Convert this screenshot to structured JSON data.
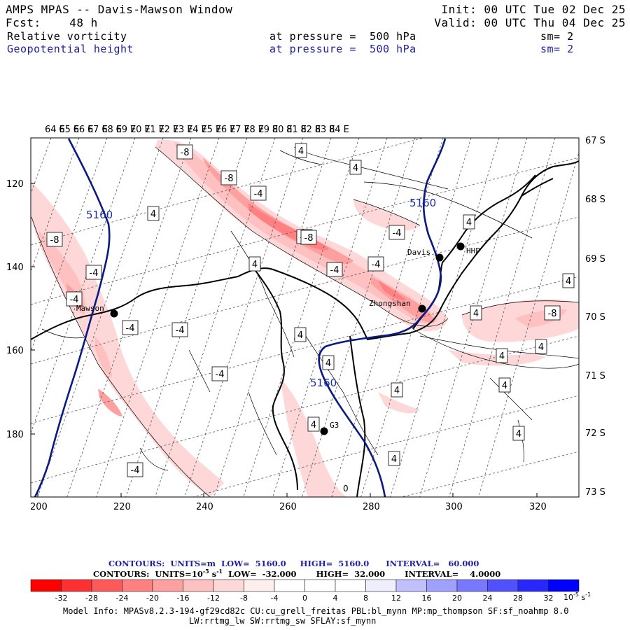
{
  "header": {
    "title": "AMPS MPAS -- Davis-Mawson Window",
    "fcst_label": "Fcst:",
    "fcst_value": "48 h",
    "init": "Init: 00 UTC Tue 02 Dec 25",
    "valid": "Valid: 00 UTC Thu 04 Dec 25",
    "field1": {
      "name": "Relative vorticity",
      "pressure": "at pressure =  500 hPa",
      "sm": "sm= 2"
    },
    "field2": {
      "name": "Geopotential height",
      "pressure": "at pressure =  500 hPa",
      "sm": "sm= 2"
    }
  },
  "map": {
    "top_lon_labels": [
      "64 E",
      "65 E",
      "66 E",
      "67 E",
      "68 E",
      "69 E",
      "70 E",
      "71 E",
      "72 E",
      "73 E",
      "74 E",
      "75 E",
      "76 E",
      "77 E",
      "78 E",
      "79 E",
      "80 E",
      "81 E",
      "82 E",
      "83 E",
      "84 E"
    ],
    "right_lat_labels": [
      "67 S",
      "68 S",
      "69 S",
      "70 S",
      "71 S",
      "72 S",
      "73 S"
    ],
    "x_ticks": [
      "200",
      "220",
      "240",
      "260",
      "280",
      "300",
      "320"
    ],
    "y_ticks": [
      "120",
      "140",
      "160",
      "180"
    ],
    "stations": [
      "Davis",
      "HHP",
      "Mawson",
      "Zhongshan",
      "G3"
    ],
    "height_labels": [
      "5160",
      "5160",
      "5160"
    ],
    "vort_labels": [
      "-8",
      "-8",
      "-4",
      "-4",
      "-8",
      "-4",
      "-4",
      "-4",
      "-8",
      "-4",
      "-4",
      "-4",
      "-4",
      "-4",
      "-4",
      "-8",
      "4",
      "4",
      "4",
      "4",
      "4",
      "4",
      "4",
      "4",
      "4",
      "4",
      "4",
      "4",
      "4",
      "4",
      "4",
      "4",
      "0"
    ]
  },
  "legend": {
    "contour1": "CONTOURS:  UNITS=m  LOW=  5160.0     HIGH=  5160.0      INTERVAL=   60.000",
    "contour2_prefix": "CONTOURS:  UNITS=10",
    "contour2_exp": "-5",
    "contour2_suffix": " s",
    "contour2_exp2": "-1",
    "contour2_rest": "  LOW=  -32.000       HIGH=  32.000       INTERVAL=    4.0000",
    "colorbar_labels": [
      "-32",
      "-28",
      "-24",
      "-20",
      "-16",
      "-12",
      "-8",
      "-4",
      "0",
      "4",
      "8",
      "12",
      "16",
      "20",
      "24",
      "28",
      "32"
    ],
    "colorbar_colors": [
      "#fe0000",
      "#fe3030",
      "#fe5a5a",
      "#fe8080",
      "#fea0a0",
      "#fec0c0",
      "#fed8d8",
      "#ffeeee",
      "#ffffff",
      "#ffffff",
      "#eeeeff",
      "#c0c0fe",
      "#a0a0fe",
      "#7878fe",
      "#5050fe",
      "#2828fe",
      "#0000fe"
    ],
    "units_text": "10",
    "units_exp": "-5",
    "units_s": "s",
    "units_exp2": "-1"
  },
  "model_info": {
    "line1": "Model Info: MPASv8.2.3-194-gf29cd82c CU:cu_grell_freitas PBL:bl_mynn MP:mp_thompson SF:sf_noahmp 8.0",
    "line2": "LW:rrtmg_lw SW:rrtmg_sw SFLAY:sf_mynn"
  }
}
